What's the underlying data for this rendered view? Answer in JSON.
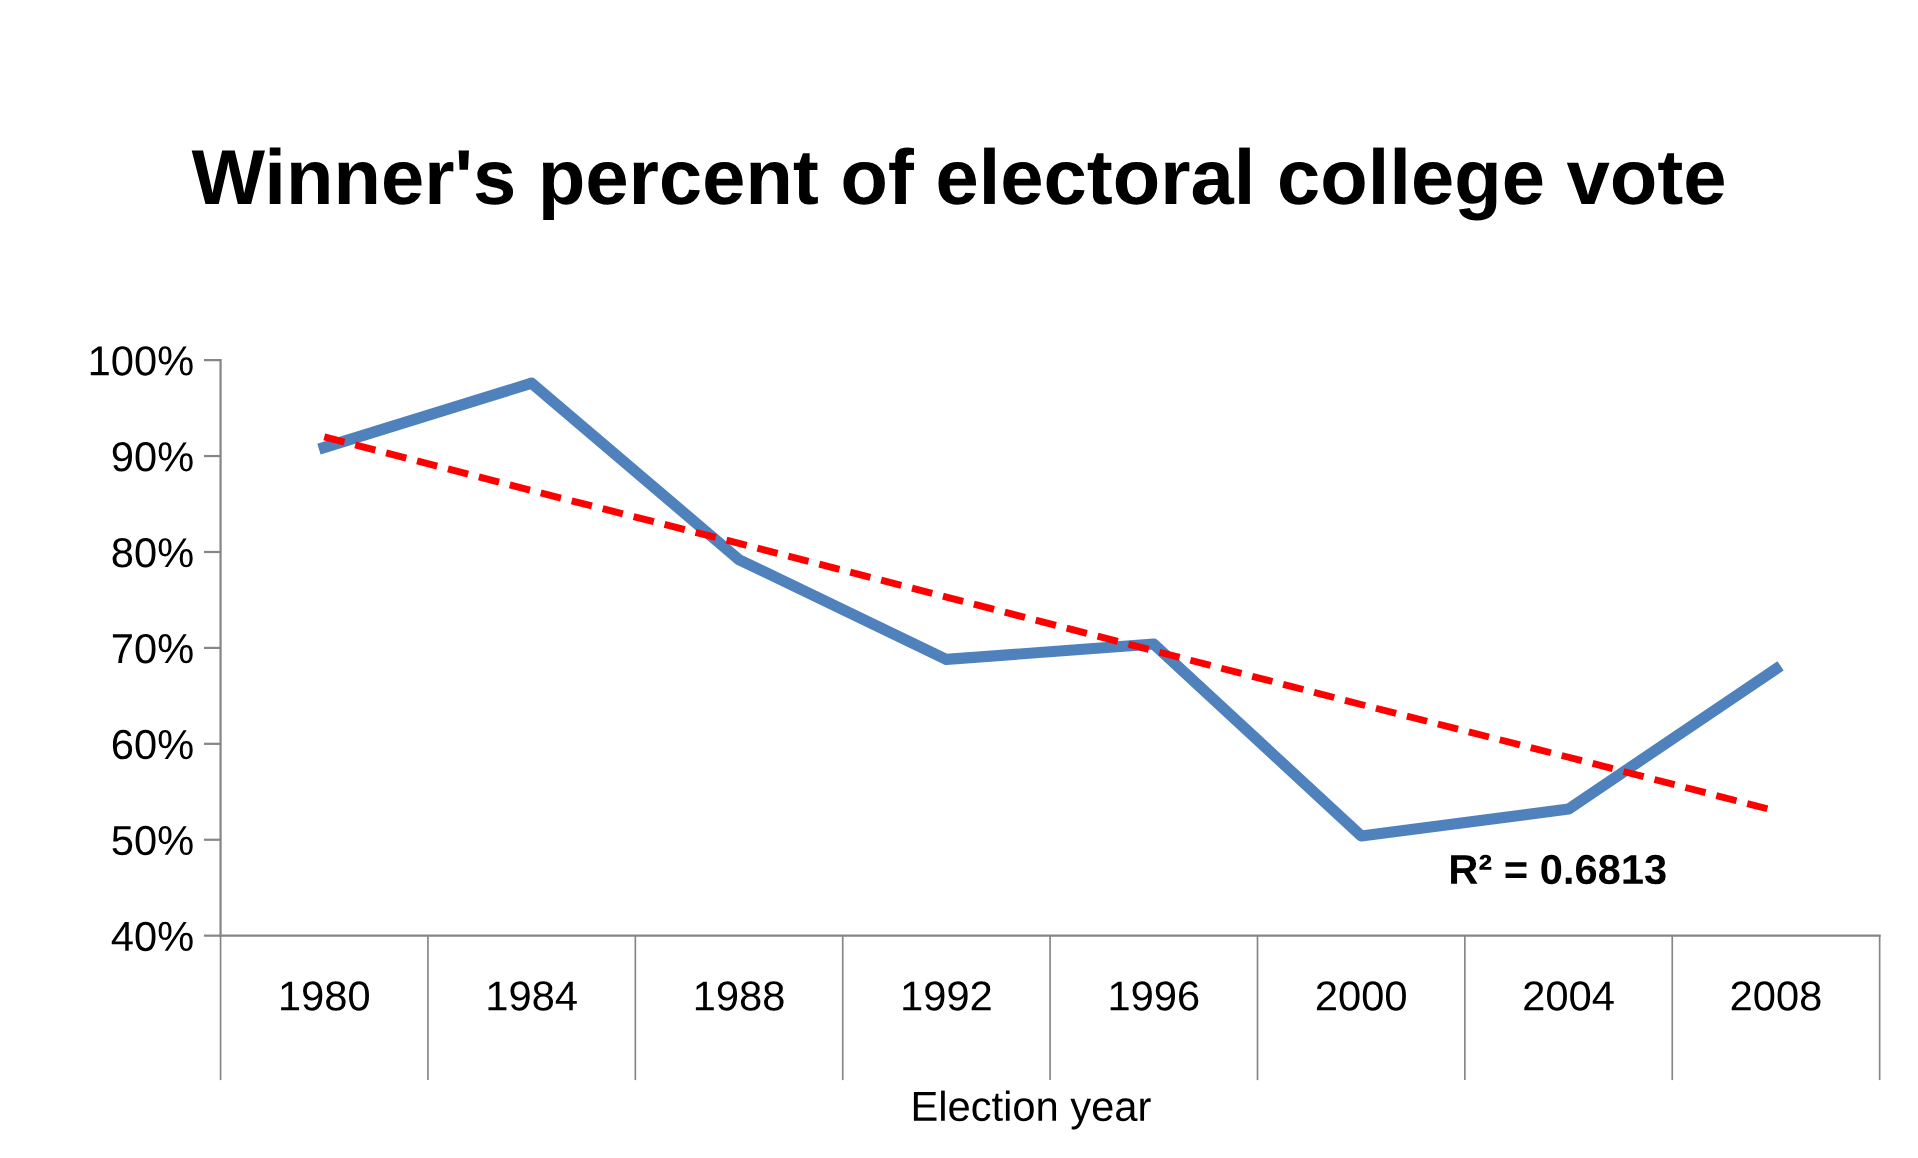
{
  "chart_data": {
    "type": "line",
    "title": "Winner's percent of electoral college vote",
    "xlabel": "Election year",
    "categories": [
      "1980",
      "1984",
      "1988",
      "1992",
      "1996",
      "2000",
      "2004",
      "2008"
    ],
    "series": [
      {
        "color": "#4f81bd",
        "values": [
          90.9,
          97.6,
          79.2,
          68.8,
          70.4,
          50.4,
          53.2,
          67.8
        ]
      },
      {
        "type": "line",
        "color": "#ff0000",
        "line_style": "dashed",
        "values": [
          92.0,
          86.4,
          80.9,
          75.3,
          69.7,
          64.1,
          58.6,
          53.0
        ]
      }
    ],
    "ylim": [
      40,
      100
    ],
    "yticks": [
      {
        "value": 40,
        "label": "40%"
      },
      {
        "value": 50,
        "label": "50%"
      },
      {
        "value": 60,
        "label": "60%"
      },
      {
        "value": 70,
        "label": "70%"
      },
      {
        "value": 80,
        "label": "80%"
      },
      {
        "value": 90,
        "label": "90%"
      },
      {
        "value": 100,
        "label": "100%"
      }
    ],
    "annotations": [
      "R² = 0.6813"
    ],
    "grid": false,
    "legend": false
  }
}
